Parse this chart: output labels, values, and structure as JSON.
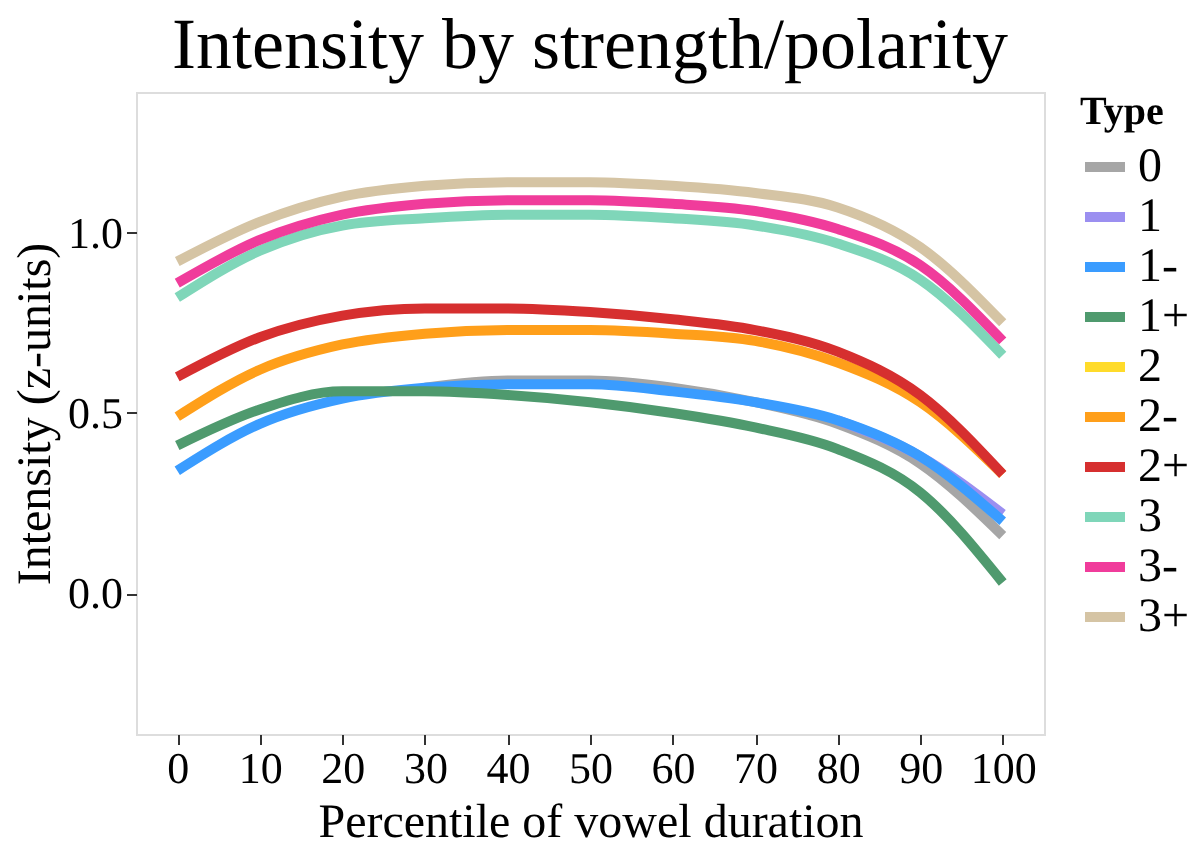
{
  "chart_data": {
    "type": "line",
    "title": "Intensity by strength/polarity",
    "xlabel": "Percentile of vowel duration",
    "ylabel": "Intensity (z-units)",
    "legend_title": "Type",
    "x": [
      0,
      10,
      20,
      30,
      40,
      50,
      60,
      70,
      80,
      90,
      100
    ],
    "xlim": [
      -5,
      105
    ],
    "xticks": [
      0,
      10,
      20,
      30,
      40,
      50,
      60,
      70,
      80,
      90,
      100
    ],
    "ylim": [
      -0.39,
      1.39
    ],
    "yticks": [
      {
        "value": 0,
        "label": "0.0"
      },
      {
        "value": 0.5,
        "label": "0.5"
      },
      {
        "value": 1,
        "label": "1.0"
      }
    ],
    "grid": false,
    "legend": "right",
    "line_style": "solid",
    "marker": "none",
    "series": [
      {
        "name": "0",
        "color": "#a6a6a6",
        "values": [
          null,
          null,
          null,
          0.57,
          0.59,
          0.59,
          0.57,
          0.53,
          0.47,
          0.36,
          0.16
        ]
      },
      {
        "name": "1",
        "color": "#9b8ff0",
        "values": [
          null,
          null,
          null,
          null,
          null,
          null,
          null,
          null,
          0.48,
          0.38,
          0.22
        ]
      },
      {
        "name": "1-",
        "color": "#3a9cff",
        "values": [
          0.34,
          0.47,
          0.54,
          0.57,
          0.58,
          0.58,
          0.56,
          0.53,
          0.48,
          0.38,
          0.2
        ]
      },
      {
        "name": "1+",
        "color": "#4f9a6e",
        "values": [
          0.41,
          0.51,
          0.56,
          0.56,
          0.55,
          0.53,
          0.5,
          0.46,
          0.4,
          0.28,
          0.03
        ]
      },
      {
        "name": "2",
        "color": "#ffdb2a",
        "values": [
          null,
          null,
          null,
          null,
          null,
          null,
          null,
          null,
          null,
          null,
          null
        ]
      },
      {
        "name": "2-",
        "color": "#ff9f1a",
        "values": [
          0.49,
          0.62,
          0.69,
          0.72,
          0.73,
          0.73,
          0.72,
          0.7,
          0.64,
          0.53,
          0.33
        ]
      },
      {
        "name": "2+",
        "color": "#d62f2f",
        "values": [
          0.6,
          0.71,
          0.77,
          0.79,
          0.79,
          0.78,
          0.76,
          0.73,
          0.67,
          0.55,
          0.33
        ]
      },
      {
        "name": "3",
        "color": "#7fd6b9",
        "values": [
          0.82,
          0.95,
          1.02,
          1.04,
          1.05,
          1.05,
          1.04,
          1.02,
          0.97,
          0.87,
          0.66
        ]
      },
      {
        "name": "3-",
        "color": "#f03c9b",
        "values": [
          0.86,
          0.98,
          1.05,
          1.08,
          1.09,
          1.09,
          1.08,
          1.06,
          1.01,
          0.91,
          0.7
        ]
      },
      {
        "name": "3+",
        "color": "#d5c4a4",
        "values": [
          0.92,
          1.03,
          1.1,
          1.13,
          1.14,
          1.14,
          1.13,
          1.11,
          1.07,
          0.96,
          0.75
        ]
      }
    ]
  }
}
